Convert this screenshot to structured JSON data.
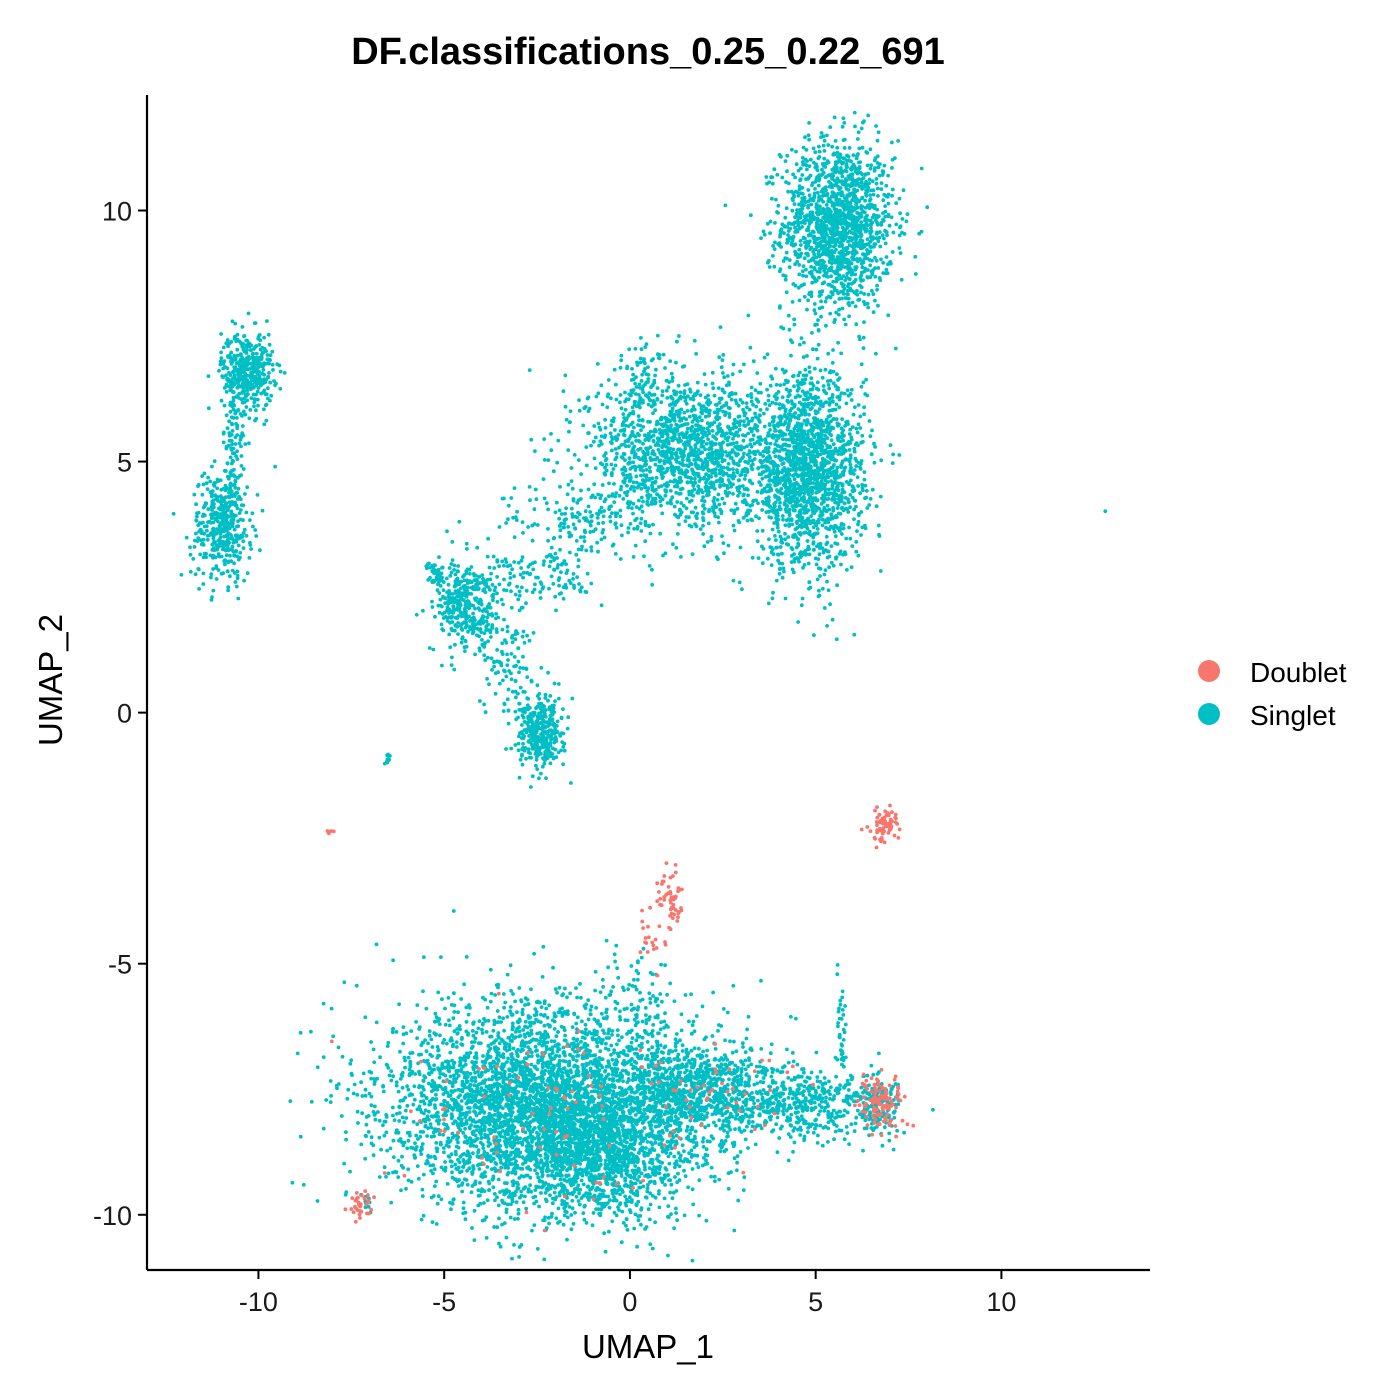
{
  "chart_data": {
    "type": "scatter",
    "title": "DF.classifications_0.25_0.22_691",
    "xlabel": "UMAP_1",
    "ylabel": "UMAP_2",
    "xlim": [
      -13,
      14
    ],
    "ylim": [
      -11.1,
      12.3
    ],
    "xticks": [
      -10,
      -5,
      0,
      5,
      10
    ],
    "yticks": [
      -10,
      -5,
      0,
      5,
      10
    ],
    "xtick_labels": [
      "-10",
      "-5",
      "0",
      "5",
      "10"
    ],
    "ytick_labels": [
      "-10",
      "-5",
      "0",
      "5",
      "10"
    ],
    "grid": false,
    "legend_position": "right",
    "series": [
      {
        "name": "Doublet",
        "color": "#F8766D",
        "clusters": [
          {
            "cx": 6.9,
            "cy": -2.2,
            "sx": 0.15,
            "sy": 0.15,
            "n": 60
          },
          {
            "cx": 6.6,
            "cy": -2.5,
            "sx": 0.15,
            "sy": 0.1,
            "n": 12
          },
          {
            "cx": -8.1,
            "cy": -2.35,
            "sx": 0.05,
            "sy": 0.04,
            "n": 5
          },
          {
            "cx": -7.2,
            "cy": -9.85,
            "sx": 0.2,
            "sy": 0.15,
            "n": 35
          },
          {
            "cx": 6.8,
            "cy": -7.8,
            "sx": 0.3,
            "sy": 0.3,
            "n": 110
          },
          {
            "cx": 1.1,
            "cy": -3.75,
            "sx": 0.2,
            "sy": 0.35,
            "n": 55
          },
          {
            "cx": 0.5,
            "cy": -4.5,
            "sx": 0.15,
            "sy": 0.2,
            "n": 15
          },
          {
            "cx": -1.5,
            "cy": -7.8,
            "sx": 2.3,
            "sy": 0.9,
            "n": 90
          },
          {
            "cx": 2.4,
            "cy": -7.3,
            "sx": 1.1,
            "sy": 0.5,
            "n": 30
          }
        ]
      },
      {
        "name": "Singlet",
        "color": "#00BFC4",
        "clusters": [
          {
            "cx": 5.6,
            "cy": 9.7,
            "sx": 0.75,
            "sy": 0.85,
            "n": 1500
          },
          {
            "cx": -10.3,
            "cy": 6.8,
            "sx": 0.35,
            "sy": 0.4,
            "n": 400
          },
          {
            "cx": -10.65,
            "cy": 5.1,
            "sx": 0.15,
            "sy": 0.8,
            "n": 120
          },
          {
            "cx": -11.0,
            "cy": 3.7,
            "sx": 0.4,
            "sy": 0.55,
            "n": 380
          },
          {
            "cx": 4.8,
            "cy": 4.8,
            "sx": 0.75,
            "sy": 0.95,
            "n": 1700
          },
          {
            "cx": 1.5,
            "cy": 5.2,
            "sx": 1.3,
            "sy": 0.75,
            "n": 1500
          },
          {
            "cx": 0.4,
            "cy": 6.6,
            "sx": 0.4,
            "sy": 0.45,
            "n": 90
          },
          {
            "cx": -1.4,
            "cy": 3.8,
            "sx": 1.0,
            "sy": 0.4,
            "n": 150
          },
          {
            "cx": -2.5,
            "cy": 2.7,
            "sx": 0.9,
            "sy": 0.3,
            "n": 130
          },
          {
            "cx": -4.4,
            "cy": 2.1,
            "sx": 0.45,
            "sy": 0.45,
            "n": 350
          },
          {
            "cx": -5.2,
            "cy": 2.8,
            "sx": 0.12,
            "sy": 0.12,
            "n": 40
          },
          {
            "cx": -3.3,
            "cy": 1.0,
            "sx": 0.35,
            "sy": 0.6,
            "n": 100
          },
          {
            "cx": -2.4,
            "cy": -0.4,
            "sx": 0.3,
            "sy": 0.35,
            "n": 350
          },
          {
            "cx": -6.5,
            "cy": -0.95,
            "sx": 0.06,
            "sy": 0.06,
            "n": 12
          },
          {
            "cx": -2.3,
            "cy": -7.8,
            "sx": 2.1,
            "sy": 1.0,
            "n": 4000
          },
          {
            "cx": -0.8,
            "cy": -8.8,
            "sx": 1.2,
            "sy": 0.6,
            "n": 1000
          },
          {
            "cx": 1.8,
            "cy": -7.6,
            "sx": 1.2,
            "sy": 0.5,
            "n": 900
          },
          {
            "cx": 4.8,
            "cy": -7.8,
            "sx": 1.0,
            "sy": 0.35,
            "n": 400
          },
          {
            "cx": 6.7,
            "cy": -7.8,
            "sx": 0.3,
            "sy": 0.3,
            "n": 150
          },
          {
            "cx": 5.7,
            "cy": -6.3,
            "sx": 0.08,
            "sy": 0.5,
            "n": 35
          },
          {
            "cx": 0.4,
            "cy": -5.8,
            "sx": 0.5,
            "sy": 0.5,
            "n": 60
          },
          {
            "cx": -7.1,
            "cy": -9.75,
            "sx": 0.12,
            "sy": 0.1,
            "n": 10
          },
          {
            "cx": 12.8,
            "cy": 4.0,
            "sx": 0.01,
            "sy": 0.01,
            "n": 1
          }
        ]
      }
    ]
  }
}
